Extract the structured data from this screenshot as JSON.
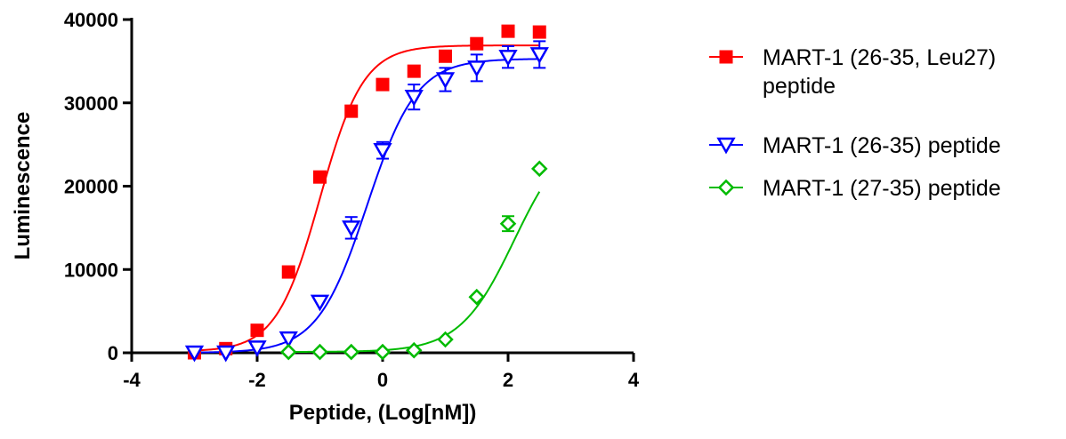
{
  "chart_data": {
    "type": "scatter",
    "title": "",
    "xlabel": "Peptide, (Log[nM])",
    "ylabel": "Luminescence",
    "xlim": [
      -4,
      4
    ],
    "ylim": [
      0,
      40000
    ],
    "xticks": [
      -4,
      -2,
      0,
      2,
      4
    ],
    "yticks": [
      0,
      10000,
      20000,
      30000,
      40000
    ],
    "xtick_labels": [
      "-4",
      "-2",
      "0",
      "2",
      "4"
    ],
    "ytick_labels": [
      "0",
      "10000",
      "20000",
      "30000",
      "40000"
    ],
    "grid": false,
    "legend_position": "right",
    "series": [
      {
        "name": "MART-1 (26-35, Leu27) peptide",
        "legend_lines": [
          "MART-1 (26-35, Leu27)",
          "peptide"
        ],
        "color": "#ff0000",
        "marker": "filled-square",
        "x": [
          -3,
          -2.5,
          -2,
          -1.5,
          -1,
          -0.5,
          0,
          0.5,
          1,
          1.5,
          2,
          2.5
        ],
        "y": [
          0,
          500,
          2700,
          9700,
          21100,
          29000,
          32200,
          33800,
          35600,
          37100,
          38600,
          38500
        ],
        "err": [
          0,
          0,
          0,
          0,
          0,
          0,
          0,
          0,
          0,
          0,
          0,
          0
        ],
        "fit": {
          "bottom": 150,
          "top": 36900,
          "logEC50": -1.0,
          "hill": 1.25
        }
      },
      {
        "name": "MART-1 (26-35) peptide",
        "legend_lines": [
          "MART-1 (26-35) peptide"
        ],
        "color": "#0000ff",
        "marker": "open-triangle-down",
        "x": [
          -3,
          -2.5,
          -2,
          -1.5,
          -1,
          -0.5,
          0,
          0.5,
          1,
          1.5,
          2,
          2.5
        ],
        "y": [
          0,
          0,
          600,
          1700,
          6100,
          15000,
          24300,
          30700,
          32800,
          34200,
          35500,
          35800
        ],
        "err": [
          0,
          0,
          0,
          0,
          0,
          1300,
          1000,
          1500,
          1400,
          1600,
          1300,
          1600
        ],
        "fit": {
          "bottom": 0,
          "top": 35300,
          "logEC50": -0.25,
          "hill": 1.1
        }
      },
      {
        "name": "MART-1 (27-35) peptide",
        "legend_lines": [
          "MART-1 (27-35) peptide"
        ],
        "color": "#00bb00",
        "marker": "open-diamond",
        "x": [
          -1.5,
          -1,
          -0.5,
          0,
          0.5,
          1,
          1.5,
          2,
          2.5
        ],
        "y": [
          100,
          100,
          100,
          100,
          300,
          1600,
          6700,
          15500,
          22100
        ],
        "err": [
          0,
          0,
          0,
          0,
          0,
          0,
          0,
          900,
          0
        ],
        "fit": {
          "bottom": 100,
          "top": 27000,
          "logEC50": 2.1,
          "hill": 1.0,
          "xmin": -1.5,
          "xmax": 2.5
        }
      }
    ]
  }
}
